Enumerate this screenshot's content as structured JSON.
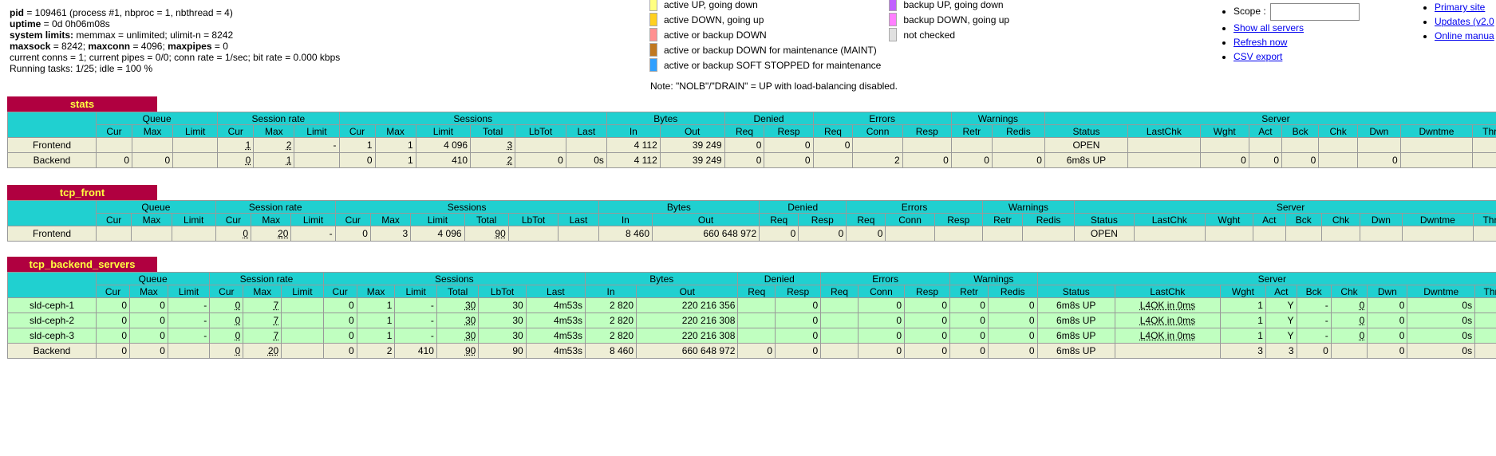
{
  "info": {
    "pid_label": "pid",
    "pid_text": " = 109461 (process #1, nbproc = 1, nbthread = 4)",
    "uptime_label": "uptime",
    "uptime_text": " = 0d 0h06m08s",
    "limits_label": "system limits:",
    "limits_text": " memmax = unlimited; ulimit-n = 8242",
    "maxsock_label": "maxsock",
    "maxsock_text": " = 8242; ",
    "maxconn_label": "maxconn",
    "maxconn_text": " = 4096; ",
    "maxpipes_label": "maxpipes",
    "maxpipes_text": " = 0",
    "conns_line": "current conns = 1; current pipes = 0/0; conn rate = 1/sec; bit rate = 0.000 kbps",
    "tasks_line": "Running tasks: 1/25; idle = 100 %"
  },
  "legend": {
    "rows": [
      {
        "c1": "#ffff80",
        "t1": "active UP, going down",
        "c2": "#c060ff",
        "t2": "backup UP, going down"
      },
      {
        "c1": "#ffd020",
        "t1": "active DOWN, going up",
        "c2": "#ff80ff",
        "t2": "backup DOWN, going up"
      },
      {
        "c1": "#ff9090",
        "t1": "active or backup DOWN",
        "c2": "#e0e0e0",
        "t2": "not checked"
      },
      {
        "c1": "#c07820",
        "t1": "active or backup DOWN for maintenance (MAINT)",
        "c2": "",
        "t2": ""
      },
      {
        "c1": "#30a0ff",
        "t1": "active or backup SOFT STOPPED for maintenance",
        "c2": "",
        "t2": ""
      }
    ],
    "note": "Note: \"NOLB\"/\"DRAIN\" = UP with load-balancing disabled."
  },
  "scope": {
    "label": "Scope :",
    "value": "",
    "show_all": "Show all servers",
    "refresh": "Refresh now",
    "csv": "CSV export"
  },
  "links": {
    "primary": "Primary site",
    "updates": "Updates (v2.0",
    "manual": "Online manua"
  },
  "headers": {
    "groups": [
      "Queue",
      "Session rate",
      "Sessions",
      "Bytes",
      "Denied",
      "Errors",
      "Warnings",
      "Server"
    ],
    "cols": [
      "Cur",
      "Max",
      "Limit",
      "Cur",
      "Max",
      "Limit",
      "Cur",
      "Max",
      "Limit",
      "Total",
      "LbTot",
      "Last",
      "In",
      "Out",
      "Req",
      "Resp",
      "Req",
      "Conn",
      "Resp",
      "Retr",
      "Redis",
      "Status",
      "LastChk",
      "Wght",
      "Act",
      "Bck",
      "Chk",
      "Dwn",
      "Dwntme",
      "Thr"
    ]
  },
  "proxies": [
    {
      "name": "stats",
      "rows": [
        {
          "cls": "fe",
          "cells": [
            "Frontend",
            "",
            "",
            "",
            "1",
            "2",
            "-",
            "1",
            "1",
            "4 096",
            "3",
            "",
            "",
            "4 112",
            "39 249",
            "0",
            "0",
            "0",
            "",
            "",
            "",
            "",
            "OPEN",
            "",
            "",
            "",
            "",
            "",
            "",
            "",
            ""
          ]
        },
        {
          "cls": "be",
          "cells": [
            "Backend",
            "0",
            "0",
            "",
            "0",
            "1",
            "",
            "0",
            "1",
            "410",
            "2",
            "0",
            "0s",
            "4 112",
            "39 249",
            "0",
            "0",
            "",
            "2",
            "0",
            "0",
            "0",
            "6m8s UP",
            "",
            "0",
            "0",
            "0",
            "",
            "0",
            "",
            ""
          ]
        }
      ]
    },
    {
      "name": "tcp_front",
      "rows": [
        {
          "cls": "fe",
          "cells": [
            "Frontend",
            "",
            "",
            "",
            "0",
            "20",
            "-",
            "0",
            "3",
            "4 096",
            "90",
            "",
            "",
            "8 460",
            "660 648 972",
            "0",
            "0",
            "0",
            "",
            "",
            "",
            "",
            "OPEN",
            "",
            "",
            "",
            "",
            "",
            "",
            "",
            ""
          ]
        }
      ]
    },
    {
      "name": "tcp_backend_servers",
      "rows": [
        {
          "cls": "up",
          "cells": [
            "sld-ceph-1",
            "0",
            "0",
            "-",
            "0",
            "7",
            "",
            "0",
            "1",
            "-",
            "30",
            "30",
            "4m53s",
            "2 820",
            "220 216 356",
            "",
            "0",
            "",
            "0",
            "0",
            "0",
            "0",
            "6m8s UP",
            "L4OK in 0ms",
            "1",
            "Y",
            "-",
            "0",
            "0",
            "0s",
            "-"
          ]
        },
        {
          "cls": "up",
          "cells": [
            "sld-ceph-2",
            "0",
            "0",
            "-",
            "0",
            "7",
            "",
            "0",
            "1",
            "-",
            "30",
            "30",
            "4m53s",
            "2 820",
            "220 216 308",
            "",
            "0",
            "",
            "0",
            "0",
            "0",
            "0",
            "6m8s UP",
            "L4OK in 0ms",
            "1",
            "Y",
            "-",
            "0",
            "0",
            "0s",
            "-"
          ]
        },
        {
          "cls": "up",
          "cells": [
            "sld-ceph-3",
            "0",
            "0",
            "-",
            "0",
            "7",
            "",
            "0",
            "1",
            "-",
            "30",
            "30",
            "4m53s",
            "2 820",
            "220 216 308",
            "",
            "0",
            "",
            "0",
            "0",
            "0",
            "0",
            "6m8s UP",
            "L4OK in 0ms",
            "1",
            "Y",
            "-",
            "0",
            "0",
            "0s",
            "-"
          ]
        },
        {
          "cls": "be",
          "cells": [
            "Backend",
            "0",
            "0",
            "",
            "0",
            "20",
            "",
            "0",
            "2",
            "410",
            "90",
            "90",
            "4m53s",
            "8 460",
            "660 648 972",
            "0",
            "0",
            "",
            "0",
            "0",
            "0",
            "0",
            "6m8s UP",
            "",
            "3",
            "3",
            "0",
            "",
            "0",
            "0s",
            ""
          ]
        }
      ]
    }
  ]
}
